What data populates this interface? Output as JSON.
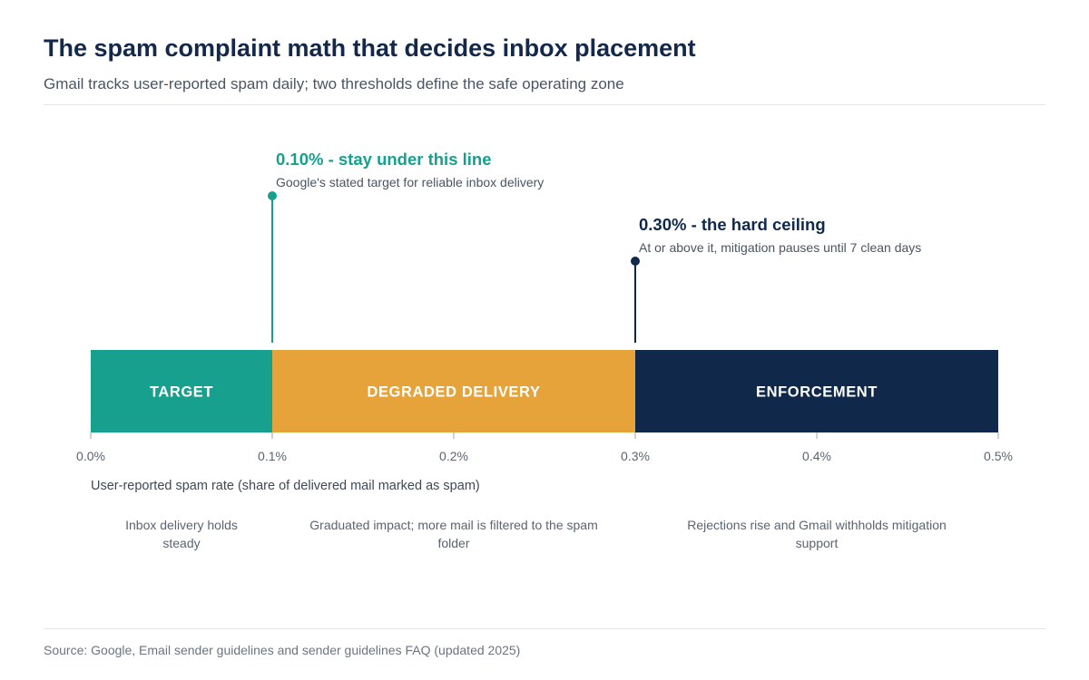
{
  "header": {
    "title": "The spam complaint math that decides inbox placement",
    "subtitle": "Gmail tracks user-reported spam daily; two thresholds define the safe operating zone"
  },
  "footer": {
    "source": "Source: Google, Email sender guidelines and sender guidelines FAQ (updated 2025)"
  },
  "colors": {
    "target": "#17a08e",
    "degraded": "#e6a33a",
    "enforcement": "#10294b",
    "axis": "#9aa4b0",
    "muted_text": "#5a6472"
  },
  "chart_data": {
    "type": "bar",
    "orientation": "horizontal-segmented",
    "xlim": [
      0,
      0.5
    ],
    "xlabel": "User-reported spam rate (share of delivered mail marked as spam)",
    "ticks": [
      0.0,
      0.1,
      0.2,
      0.3,
      0.4,
      0.5
    ],
    "tick_labels": [
      "0.0%",
      "0.1%",
      "0.2%",
      "0.3%",
      "0.4%",
      "0.5%"
    ],
    "zones": [
      {
        "label": "TARGET",
        "start": 0.0,
        "end": 0.1,
        "color": "#17a08e",
        "description": "Inbox delivery holds steady"
      },
      {
        "label": "DEGRADED DELIVERY",
        "start": 0.1,
        "end": 0.3,
        "color": "#e6a33a",
        "description": "Graduated impact; more mail is filtered to the spam folder"
      },
      {
        "label": "ENFORCEMENT",
        "start": 0.3,
        "end": 0.5,
        "color": "#10294b",
        "description": "Rejections rise and Gmail withholds mitigation support"
      }
    ],
    "thresholds": [
      {
        "value": 0.1,
        "title": "0.10% - stay under this line",
        "note": "Google's stated target for reliable inbox delivery",
        "color": "#17a08e"
      },
      {
        "value": 0.3,
        "title": "0.30% - the hard ceiling",
        "note": "At or above it, mitigation pauses until 7 clean days",
        "color": "#10294b"
      }
    ]
  }
}
